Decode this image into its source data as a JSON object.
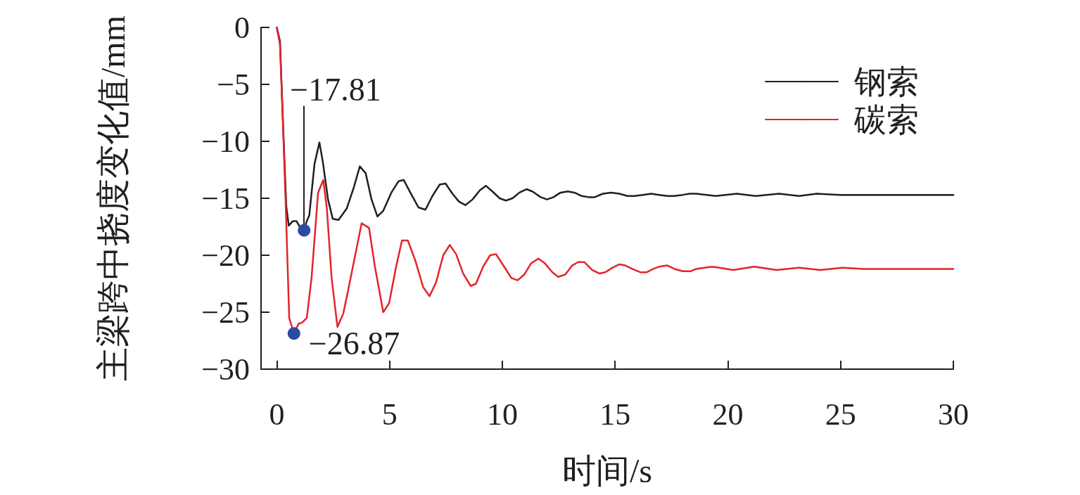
{
  "chart_data": {
    "type": "line",
    "xlabel": "时间/s",
    "ylabel": "主梁跨中挠度变化值/mm",
    "xlim": [
      -0.7,
      30
    ],
    "xticks": [
      0,
      5,
      10,
      15,
      20,
      25,
      30
    ],
    "ylim": [
      -30,
      0
    ],
    "yticks": [
      {
        "value": 0,
        "label": "0"
      },
      {
        "value": -5,
        "label": "−5"
      },
      {
        "value": -10,
        "label": "−10"
      },
      {
        "value": -15,
        "label": "−15"
      },
      {
        "value": -20,
        "label": "−20"
      },
      {
        "value": -25,
        "label": "−25"
      },
      {
        "value": -30,
        "label": "−30"
      }
    ],
    "grid": false,
    "legend": "top right",
    "annotations": [
      {
        "text": "−17.81",
        "x": 1.21,
        "y": -17.81
      },
      {
        "text": "−26.87",
        "x": 0.76,
        "y": -26.87
      }
    ],
    "series": [
      {
        "name": "钢索",
        "color": "#231f20",
        "x": [
          0,
          0.14,
          0.26,
          0.42,
          0.53,
          0.71,
          0.87,
          1.02,
          1.21,
          1.31,
          1.44,
          1.67,
          1.89,
          2.04,
          2.27,
          2.48,
          2.74,
          3.1,
          3.42,
          3.68,
          3.94,
          4.2,
          4.46,
          4.72,
          5.08,
          5.4,
          5.63,
          5.92,
          6.28,
          6.59,
          6.9,
          7.22,
          7.48,
          7.79,
          8.08,
          8.36,
          8.68,
          9.0,
          9.27,
          9.56,
          9.88,
          10.16,
          10.45,
          10.76,
          11.07,
          11.33,
          11.7,
          11.98,
          12.27,
          12.58,
          12.9,
          13.2,
          13.52,
          13.83,
          14.1,
          14.46,
          14.82,
          15.19,
          15.55,
          15.86,
          16.23,
          16.6,
          16.96,
          17.32,
          17.6,
          18.0,
          18.3,
          18.6,
          19.46,
          20.4,
          21.23,
          22.27,
          23.16,
          23.94,
          24.98,
          26.0,
          27.7,
          30.0
        ],
        "values": [
          0,
          -1.2,
          -7.7,
          -15.7,
          -17.4,
          -17.0,
          -17.0,
          -17.5,
          -17.81,
          -17.1,
          -16.5,
          -12.0,
          -10.1,
          -11.8,
          -15.1,
          -16.8,
          -16.9,
          -15.9,
          -14.0,
          -12.2,
          -12.8,
          -15.1,
          -16.6,
          -16.1,
          -14.5,
          -13.5,
          -13.4,
          -14.5,
          -15.8,
          -16.0,
          -14.8,
          -13.8,
          -13.7,
          -14.6,
          -15.3,
          -15.6,
          -15.1,
          -14.3,
          -13.9,
          -14.4,
          -15.0,
          -15.2,
          -15.0,
          -14.5,
          -14.2,
          -14.4,
          -14.9,
          -15.1,
          -14.9,
          -14.5,
          -14.4,
          -14.5,
          -14.8,
          -14.9,
          -14.9,
          -14.6,
          -14.5,
          -14.6,
          -14.8,
          -14.8,
          -14.7,
          -14.6,
          -14.7,
          -14.8,
          -14.8,
          -14.7,
          -14.6,
          -14.6,
          -14.8,
          -14.6,
          -14.8,
          -14.6,
          -14.8,
          -14.6,
          -14.7,
          -14.7,
          -14.7,
          -14.7
        ]
      },
      {
        "name": "碳索",
        "color": "#e3242b",
        "x": [
          0,
          0.14,
          0.26,
          0.4,
          0.55,
          0.76,
          0.97,
          1.13,
          1.33,
          1.54,
          1.83,
          2.06,
          2.22,
          2.43,
          2.69,
          2.95,
          3.16,
          3.76,
          4.09,
          4.35,
          4.72,
          4.98,
          5.29,
          5.55,
          5.81,
          6.13,
          6.49,
          6.77,
          7.06,
          7.38,
          7.67,
          7.95,
          8.26,
          8.6,
          8.83,
          9.15,
          9.46,
          9.72,
          10.08,
          10.4,
          10.68,
          10.97,
          11.28,
          11.6,
          11.88,
          12.22,
          12.48,
          12.79,
          13.1,
          13.36,
          13.63,
          13.99,
          14.3,
          14.56,
          14.88,
          15.19,
          15.45,
          15.76,
          16.13,
          16.39,
          16.7,
          16.96,
          17.32,
          17.63,
          18.0,
          18.36,
          18.6,
          19.3,
          20.24,
          21.17,
          22.16,
          23.16,
          24.1,
          25.08,
          26.0,
          27.06,
          28.0,
          29.04,
          30.0
        ],
        "values": [
          0,
          -1.5,
          -7.7,
          -15.9,
          -25.5,
          -26.87,
          -26.0,
          -25.9,
          -25.5,
          -22.0,
          -14.5,
          -13.4,
          -15.9,
          -22.0,
          -26.3,
          -25.1,
          -23.1,
          -17.2,
          -17.6,
          -21.0,
          -25.0,
          -24.2,
          -21.0,
          -18.7,
          -18.7,
          -20.4,
          -22.8,
          -23.6,
          -22.4,
          -20.0,
          -19.1,
          -19.9,
          -21.6,
          -22.7,
          -22.5,
          -21.0,
          -20.0,
          -19.9,
          -21.0,
          -22.0,
          -22.2,
          -21.7,
          -20.7,
          -20.3,
          -20.7,
          -21.5,
          -21.9,
          -21.7,
          -20.9,
          -20.6,
          -20.6,
          -21.3,
          -21.6,
          -21.5,
          -21.1,
          -20.8,
          -20.9,
          -21.2,
          -21.5,
          -21.5,
          -21.2,
          -21.0,
          -20.9,
          -21.2,
          -21.4,
          -21.4,
          -21.2,
          -21.0,
          -21.3,
          -21.0,
          -21.3,
          -21.1,
          -21.3,
          -21.1,
          -21.2,
          -21.2,
          -21.2,
          -21.2,
          -21.2
        ]
      }
    ]
  }
}
